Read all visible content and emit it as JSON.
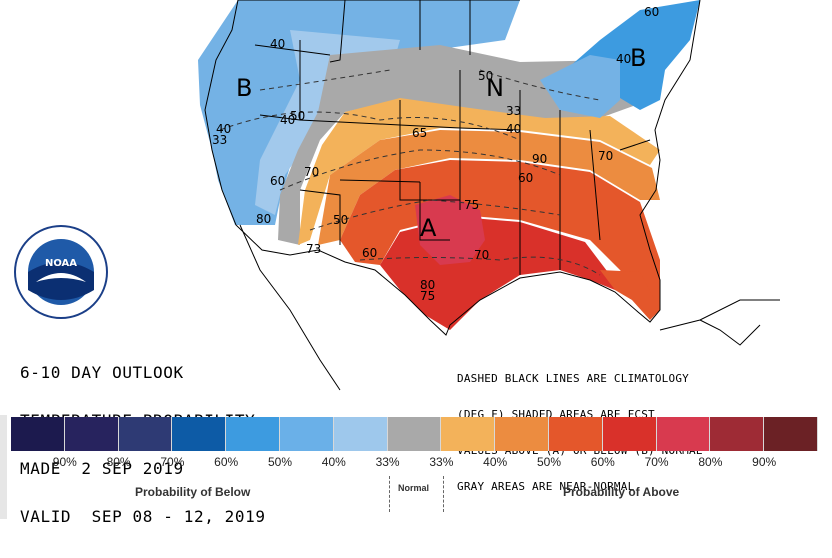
{
  "title_block": {
    "line1": "6-10 DAY OUTLOOK",
    "line2": "TEMPERATURE PROBABILITY",
    "line3": "MADE  2 SEP 2019",
    "line4": "VALID  SEP 08 - 12, 2019"
  },
  "notes": {
    "line1": "DASHED BLACK LINES ARE CLIMATOLOGY",
    "line2": "(DEG F) SHADED AREAS ARE FCST",
    "line3": "VALUES ABOVE (A) OR BELOW (B) NORMAL",
    "line4": "GRAY AREAS ARE NEAR-NORMAL"
  },
  "map_labels": {
    "below_west": "B",
    "below_northeast": "B",
    "above_center": "A",
    "near_normal": "N"
  },
  "isotherms": [
    "40",
    "40",
    "40",
    "40",
    "50",
    "60",
    "70",
    "65",
    "40",
    "33",
    "60",
    "90",
    "70",
    "60",
    "50",
    "70",
    "75",
    "80",
    "80",
    "33",
    "73",
    "75",
    "60",
    "50"
  ],
  "legend": {
    "colors": [
      "#1c1a4e",
      "#27235e",
      "#2e3a74",
      "#0d5ba6",
      "#3d9be0",
      "#6ab0e8",
      "#9ec8ec",
      "#a9a9a9",
      "#f3b25a",
      "#ec8c40",
      "#e4572b",
      "#d9312a",
      "#d83a4f",
      "#9e2b35",
      "#6b2125"
    ],
    "tick_labels": [
      "90%",
      "80%",
      "70%",
      "60%",
      "50%",
      "40%",
      "33%",
      "33%",
      "40%",
      "50%",
      "60%",
      "70%",
      "80%",
      "90%"
    ],
    "below_caption": "Probability of Below",
    "normal_caption": "Normal",
    "above_caption": "Probability of Above"
  },
  "logo": {
    "center_text": "NOAA",
    "ring_text": "NATIONAL OCEANIC AND ATMOSPHERIC ADMINISTRATION · U.S. DEPARTMENT OF COMMERCE"
  }
}
